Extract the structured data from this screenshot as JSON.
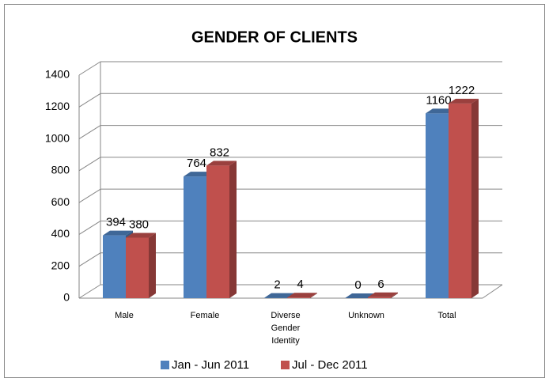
{
  "chart_data": {
    "type": "bar3d",
    "title": "GENDER OF CLIENTS",
    "categories": [
      "Male",
      "Female",
      "Diverse Gender Identity",
      "Unknown",
      "Total"
    ],
    "series": [
      {
        "name": "Jan - Jun 2011",
        "color": "#4f81bd",
        "values": [
          394,
          764,
          2,
          0,
          1160
        ]
      },
      {
        "name": "Jul - Dec 2011",
        "color": "#c0504d",
        "values": [
          380,
          832,
          4,
          6,
          1222
        ]
      }
    ],
    "ylim": [
      0,
      1400
    ],
    "yticks": [
      0,
      200,
      400,
      600,
      800,
      1000,
      1200,
      1400
    ],
    "grid": true,
    "legend": "bottom"
  }
}
